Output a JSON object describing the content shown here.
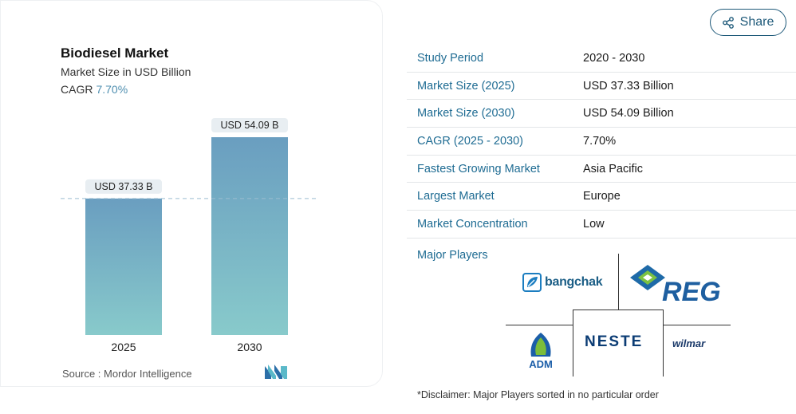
{
  "chart_data": {
    "type": "bar",
    "title": "Biodiesel Market",
    "subtitle": "Market Size in USD Billion",
    "cagr_label": "CAGR",
    "cagr_value": "7.70%",
    "categories": [
      "2025",
      "2030"
    ],
    "values": [
      37.33,
      54.09
    ],
    "data_labels": [
      "USD 37.33 B",
      "USD 54.09 B"
    ],
    "ylim": [
      0,
      54.09
    ],
    "grid": false,
    "bar_gradient": [
      "#6a9ec0",
      "#88cacb"
    ]
  },
  "source": {
    "label": "Source :",
    "name": "Mordor Intelligence"
  },
  "share_label": "Share",
  "info_rows": [
    {
      "key": "Study Period",
      "value": "2020 - 2030"
    },
    {
      "key": "Market Size (2025)",
      "value": "USD 37.33 Billion"
    },
    {
      "key": "Market Size (2030)",
      "value": "USD 54.09 Billion"
    },
    {
      "key": "CAGR (2025 - 2030)",
      "value": "7.70%"
    },
    {
      "key": "Fastest Growing Market",
      "value": "Asia Pacific"
    },
    {
      "key": "Largest Market",
      "value": "Europe"
    },
    {
      "key": "Market Concentration",
      "value": "Low"
    }
  ],
  "players": {
    "label": "Major Players",
    "bangchak": "bangchak",
    "reg": "REG",
    "adm": "ADM",
    "neste": "NESTE",
    "wilmar": "wilmar"
  },
  "disclaimer": "*Disclaimer: Major Players sorted in no particular order",
  "colors": {
    "accent": "#1f6c93",
    "cagr": "#4f8fb0"
  }
}
